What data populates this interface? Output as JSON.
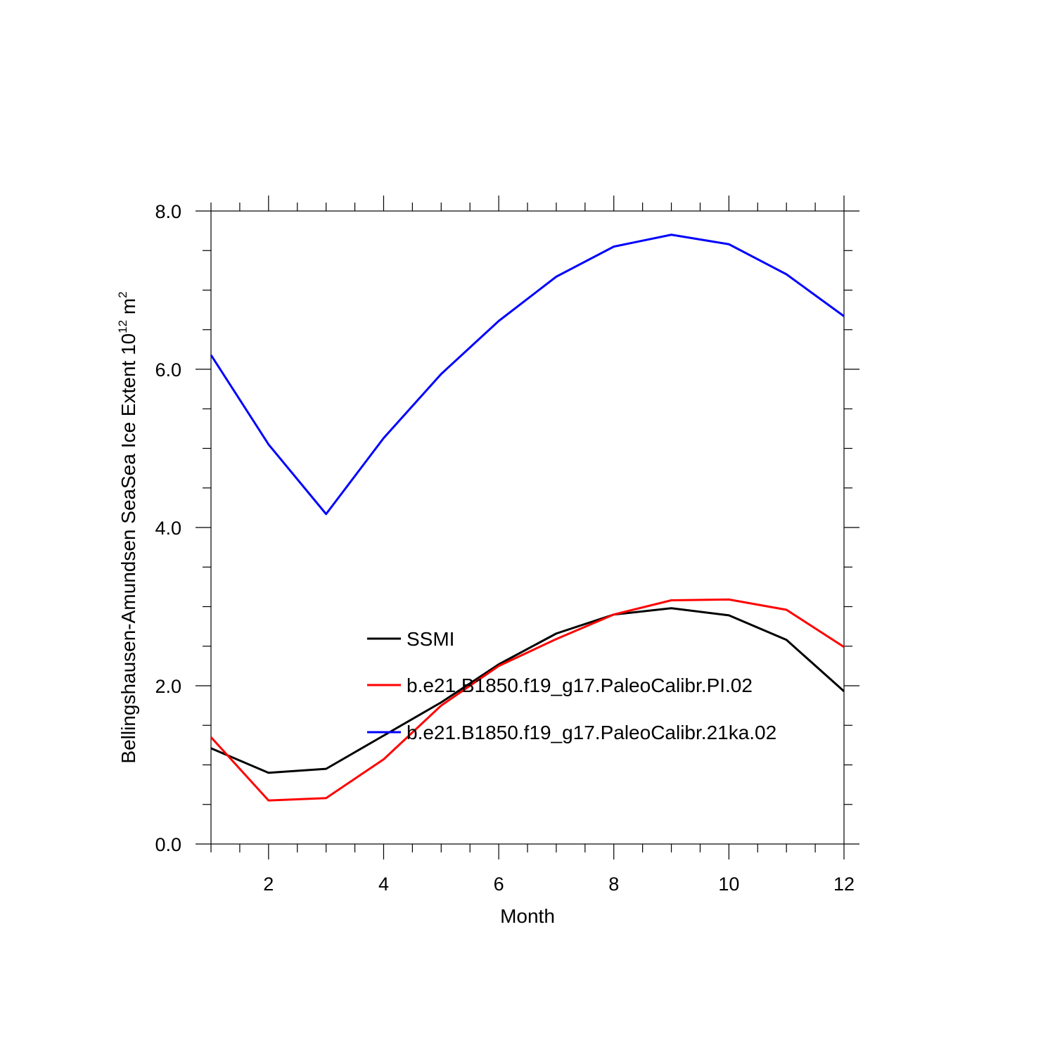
{
  "chart_data": {
    "type": "line",
    "title": "",
    "xlabel": "Month",
    "ylabel": {
      "prefix": "Bellingshausen-Amundsen SeaSea Ice Extent 10",
      "exponent": "12",
      "unit": " m",
      "unit_exponent": "2"
    },
    "xlim": [
      1,
      12
    ],
    "ylim": [
      0,
      8
    ],
    "x_ticks": [
      2,
      4,
      6,
      8,
      10,
      12
    ],
    "x_tick_labels": [
      "2",
      "4",
      "6",
      "8",
      "10",
      "12"
    ],
    "y_ticks": [
      0,
      2,
      4,
      6,
      8
    ],
    "y_tick_labels": [
      "0.0",
      "2.0",
      "4.0",
      "6.0",
      "8.0"
    ],
    "grid": false,
    "legend_position": "center",
    "x": [
      1,
      2,
      3,
      4,
      5,
      6,
      7,
      8,
      9,
      10,
      11,
      12
    ],
    "series": [
      {
        "name": "SSMI",
        "color": "#000000",
        "values": [
          1.21,
          0.9,
          0.95,
          1.37,
          1.79,
          2.27,
          2.66,
          2.9,
          2.98,
          2.89,
          2.58,
          1.93
        ]
      },
      {
        "name": "b.e21.B1850.f19_g17.PaleoCalibr.PI.02",
        "color": "#ff0000",
        "values": [
          1.35,
          0.55,
          0.58,
          1.07,
          1.75,
          2.25,
          2.59,
          2.9,
          3.08,
          3.09,
          2.96,
          2.49
        ]
      },
      {
        "name": "b.e21.B1850.f19_g17.PaleoCalibr.21ka.02",
        "color": "#0000ff",
        "values": [
          6.18,
          5.05,
          4.17,
          5.13,
          5.94,
          6.61,
          7.17,
          7.55,
          7.7,
          7.58,
          7.2,
          6.67
        ]
      }
    ]
  }
}
